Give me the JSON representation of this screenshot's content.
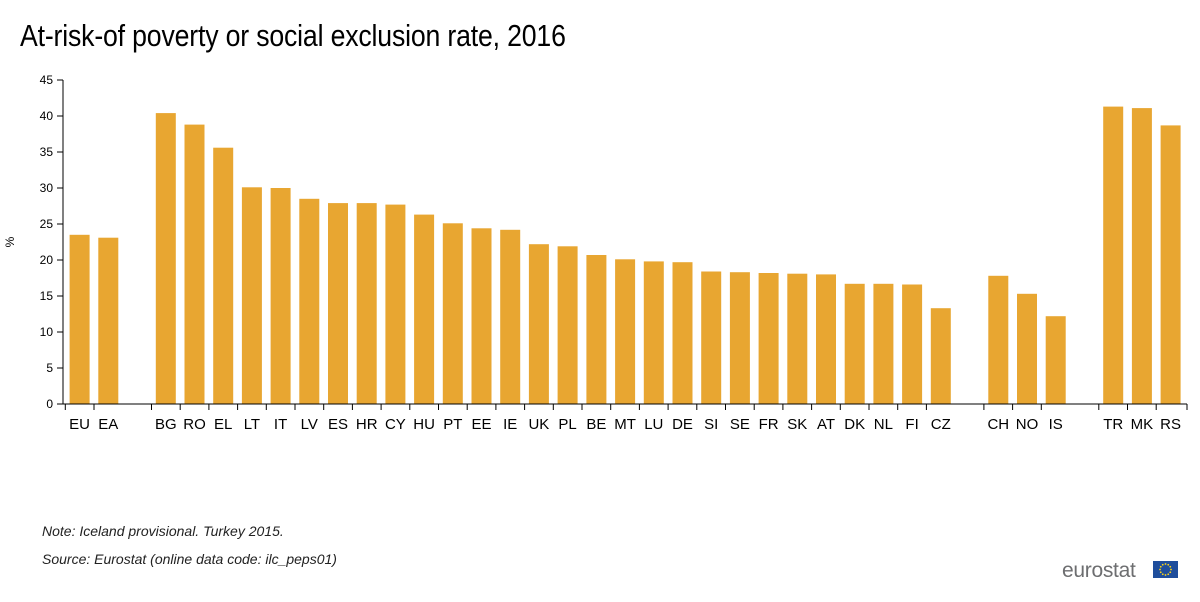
{
  "title": "At-risk-of poverty or social exclusion rate, 2016",
  "notes": {
    "note": "Note: Iceland provisional. Turkey 2015.",
    "source": "Source: Eurostat (online data code: ilc_peps01)"
  },
  "brand": {
    "name": "eurostat",
    "logo_icon": "eu-flag-icon"
  },
  "colors": {
    "bar": "#E8A631",
    "axis": "#000000",
    "flag_blue": "#1f4e9c",
    "flag_star": "#ffd617"
  },
  "chart_data": {
    "type": "bar",
    "ylabel": "%",
    "ylim": [
      0,
      45
    ],
    "yticks": [
      0,
      5,
      10,
      15,
      20,
      25,
      30,
      35,
      40,
      45
    ],
    "grid": false,
    "categories": [
      "EU",
      "EA",
      "BG",
      "RO",
      "EL",
      "LT",
      "IT",
      "LV",
      "ES",
      "HR",
      "CY",
      "HU",
      "PT",
      "EE",
      "IE",
      "UK",
      "PL",
      "BE",
      "MT",
      "LU",
      "DE",
      "SI",
      "SE",
      "FR",
      "SK",
      "AT",
      "DK",
      "NL",
      "FI",
      "CZ",
      "CH",
      "NO",
      "IS",
      "TR",
      "MK",
      "RS"
    ],
    "values": [
      23.5,
      23.1,
      40.4,
      38.8,
      35.6,
      30.1,
      30.0,
      28.5,
      27.9,
      27.9,
      27.7,
      26.3,
      25.1,
      24.4,
      24.2,
      22.2,
      21.9,
      20.7,
      20.1,
      19.8,
      19.7,
      18.4,
      18.3,
      18.2,
      18.1,
      18.0,
      16.7,
      16.7,
      16.6,
      13.3,
      17.8,
      15.3,
      12.2,
      41.3,
      41.1,
      38.7
    ],
    "groups": [
      2,
      28,
      3,
      3
    ]
  }
}
